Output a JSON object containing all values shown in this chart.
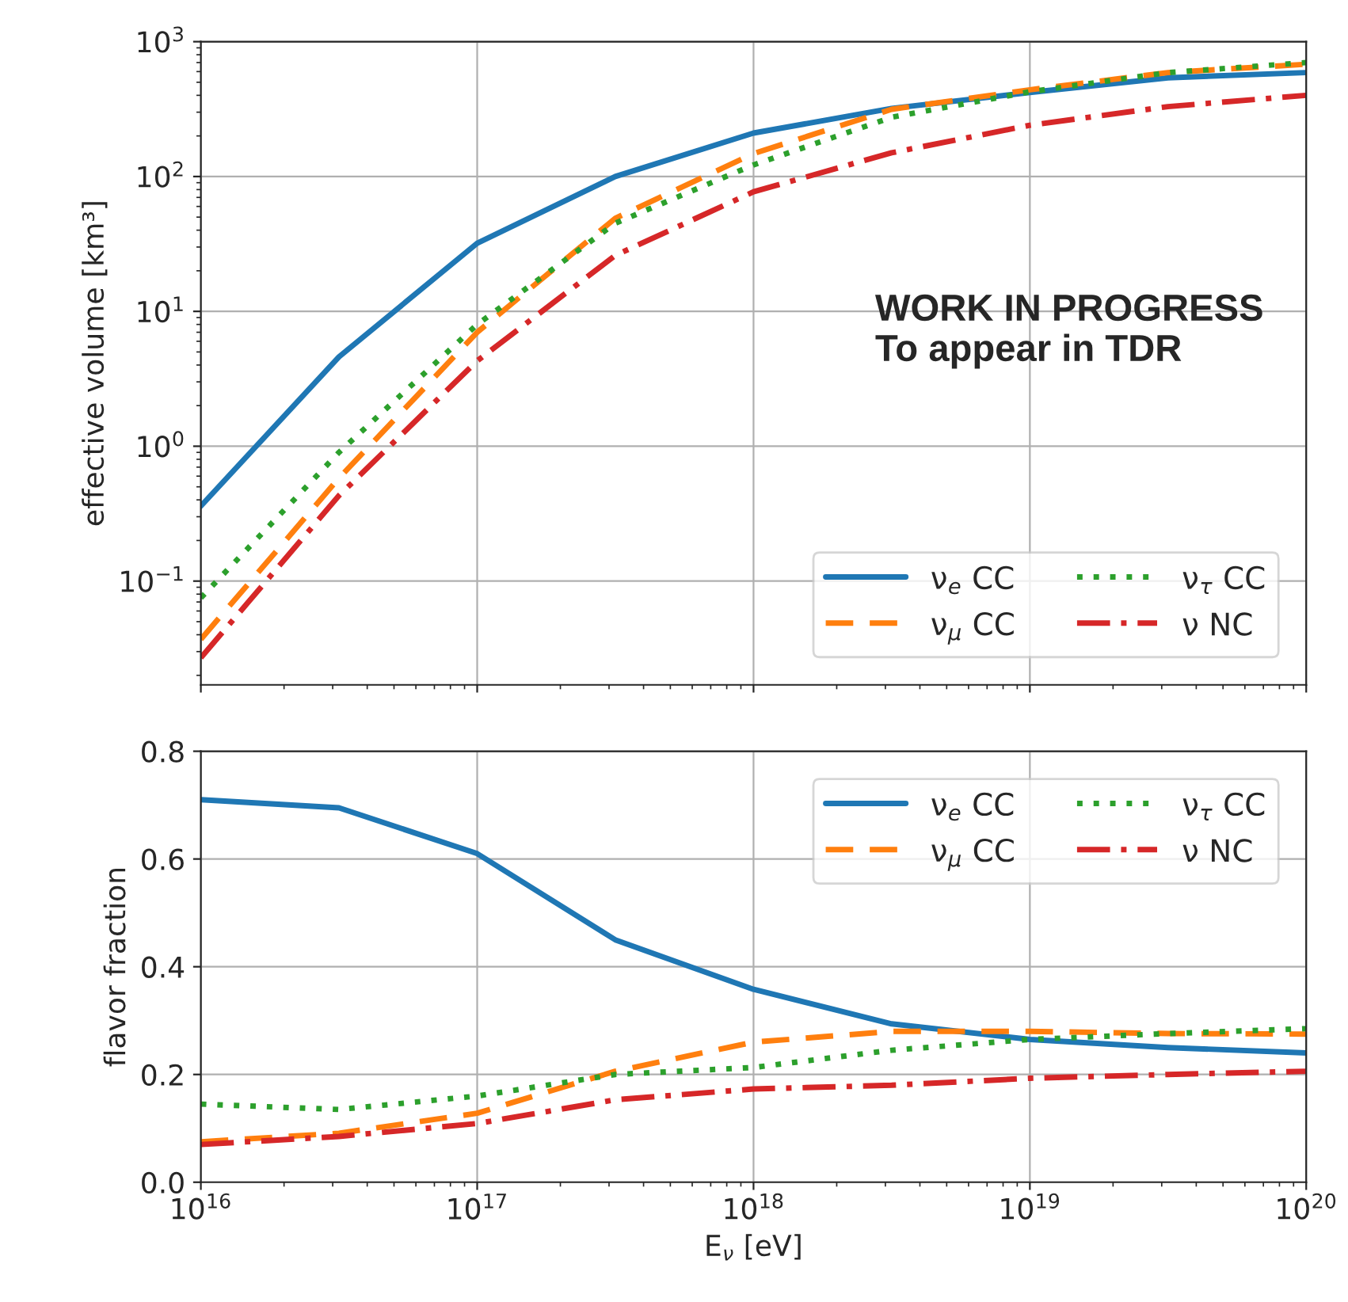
{
  "chart_data": [
    {
      "type": "line",
      "ylabel": "effective volume [km³]",
      "log": "xy",
      "grid": true,
      "legend": "lower right",
      "tick_labels": "y",
      "x": [
        1e+16,
        3.16e+16,
        1e+17,
        3.16e+17,
        1e+18,
        3.16e+18,
        1e+19,
        3.16e+19,
        1e+20
      ],
      "xlim": [
        1e+16,
        1e+20
      ],
      "xticks": [
        {
          "value": 1e+16,
          "label": null
        },
        {
          "value": 1e+17,
          "label": null
        },
        {
          "value": 1e+18,
          "label": null
        },
        {
          "value": 1e+19,
          "label": null
        },
        {
          "value": 1e+20,
          "label": null
        }
      ],
      "ylim": [
        0.017,
        1000
      ],
      "yticks": [
        {
          "value": 0.1,
          "label": "10$^{−1}$"
        },
        {
          "value": 1,
          "label": "10$^{0}$"
        },
        {
          "value": 10,
          "label": "10$^{1}$"
        },
        {
          "value": 100,
          "label": "10$^{2}$"
        },
        {
          "value": 1000,
          "label": "10$^{3}$"
        }
      ],
      "annotations": [
        "WORK IN PROGRESS\nTo appear in TDR"
      ],
      "series": [
        {
          "name": "ν$_{e}$ CC",
          "color": "#1f77b4",
          "line_style": "solid",
          "values": [
            0.36,
            4.6,
            32,
            100,
            210,
            320,
            420,
            540,
            590
          ]
        },
        {
          "name": "ν$_{μ}$ CC",
          "color": "#ff7f0e",
          "line_style": "dashed",
          "values": [
            0.037,
            0.58,
            7,
            49,
            148,
            315,
            440,
            590,
            680
          ]
        },
        {
          "name": "ν$_{τ}$ CC",
          "color": "#2ca02c",
          "line_style": "dotted",
          "values": [
            0.075,
            0.9,
            8,
            45,
            122,
            275,
            425,
            590,
            700
          ]
        },
        {
          "name": "ν NC",
          "color": "#d62728",
          "line_style": "dashdot",
          "values": [
            0.027,
            0.43,
            4.3,
            26,
            77,
            150,
            240,
            330,
            400
          ]
        }
      ]
    },
    {
      "type": "line",
      "ylabel": "flavor fraction",
      "xlabel": "E$_{ν}$ [eV]",
      "log": "x",
      "grid": true,
      "legend": "upper right",
      "x": [
        1e+16,
        3.16e+16,
        1e+17,
        3.16e+17,
        1e+18,
        3.16e+18,
        1e+19,
        3.16e+19,
        1e+20
      ],
      "xlim": [
        1e+16,
        1e+20
      ],
      "xticks": [
        {
          "value": 1e+16,
          "label": "10$^{16}$"
        },
        {
          "value": 1e+17,
          "label": "10$^{17}$"
        },
        {
          "value": 1e+18,
          "label": "10$^{18}$"
        },
        {
          "value": 1e+19,
          "label": "10$^{19}$"
        },
        {
          "value": 1e+20,
          "label": "10$^{20}$"
        }
      ],
      "ylim": [
        0,
        0.8
      ],
      "yticks": [
        {
          "value": 0,
          "label": "0.0"
        },
        {
          "value": 0.2,
          "label": "0.2"
        },
        {
          "value": 0.4,
          "label": "0.4"
        },
        {
          "value": 0.6,
          "label": "0.6"
        },
        {
          "value": 0.8,
          "label": "0.8"
        }
      ],
      "series": [
        {
          "name": "ν$_{e}$ CC",
          "color": "#1f77b4",
          "line_style": "solid",
          "values": [
            0.71,
            0.695,
            0.61,
            0.45,
            0.358,
            0.294,
            0.265,
            0.25,
            0.24
          ]
        },
        {
          "name": "ν$_{μ}$ CC",
          "color": "#ff7f0e",
          "line_style": "dashed",
          "values": [
            0.075,
            0.091,
            0.128,
            0.206,
            0.26,
            0.28,
            0.28,
            0.276,
            0.275
          ]
        },
        {
          "name": "ν$_{τ}$ CC",
          "color": "#2ca02c",
          "line_style": "dotted",
          "values": [
            0.145,
            0.135,
            0.16,
            0.2,
            0.213,
            0.245,
            0.265,
            0.276,
            0.285
          ]
        },
        {
          "name": "ν NC",
          "color": "#d62728",
          "line_style": "dashdot",
          "values": [
            0.07,
            0.085,
            0.109,
            0.153,
            0.173,
            0.18,
            0.193,
            0.2,
            0.206
          ]
        }
      ]
    }
  ]
}
